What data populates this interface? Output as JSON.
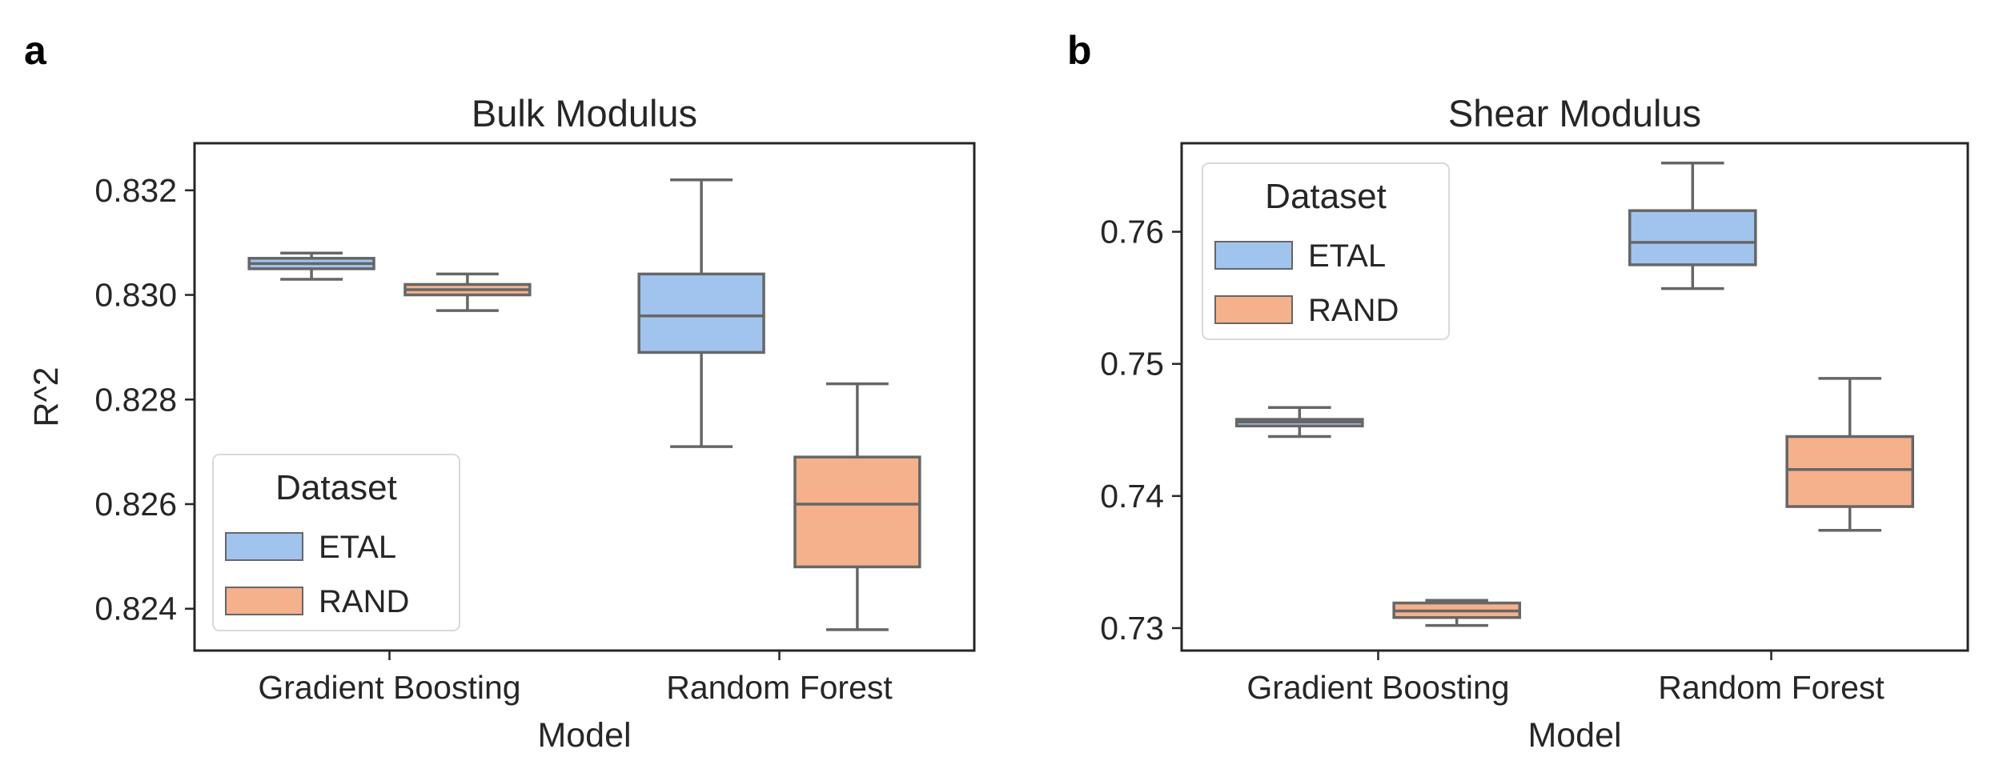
{
  "panels": [
    {
      "letter": "a"
    },
    {
      "letter": "b"
    }
  ],
  "colors": {
    "ETAL": "#a1c4ee",
    "RAND": "#f4b18c",
    "line": "#666666",
    "frame": "#262626"
  },
  "chart_data": [
    {
      "type": "box",
      "title": "Bulk Modulus",
      "xlabel": "Model",
      "ylabel": "R^2",
      "categories": [
        "Gradient Boosting",
        "Random Forest"
      ],
      "ylim": [
        0.8232,
        0.8329
      ],
      "yticks": [
        "0.824",
        "0.826",
        "0.828",
        "0.830",
        "0.832"
      ],
      "ytick_values": [
        0.824,
        0.826,
        0.828,
        0.83,
        0.832
      ],
      "legend": {
        "title": "Dataset",
        "position": "lower-left",
        "entries": [
          "ETAL",
          "RAND"
        ]
      },
      "series": [
        {
          "name": "ETAL",
          "boxes": [
            {
              "min": 0.8303,
              "q1": 0.8305,
              "median": 0.8306,
              "q3": 0.8307,
              "max": 0.8308
            },
            {
              "min": 0.8271,
              "q1": 0.8289,
              "median": 0.8296,
              "q3": 0.8304,
              "max": 0.8322
            }
          ]
        },
        {
          "name": "RAND",
          "boxes": [
            {
              "min": 0.8297,
              "q1": 0.83,
              "median": 0.8301,
              "q3": 0.8302,
              "max": 0.8304
            },
            {
              "min": 0.8236,
              "q1": 0.8248,
              "median": 0.826,
              "q3": 0.8269,
              "max": 0.8283
            }
          ]
        }
      ]
    },
    {
      "type": "box",
      "title": "Shear Modulus",
      "xlabel": "Model",
      "ylabel": "",
      "categories": [
        "Gradient Boosting",
        "Random Forest"
      ],
      "ylim": [
        0.7283,
        0.7667
      ],
      "yticks": [
        "0.73",
        "0.74",
        "0.75",
        "0.76"
      ],
      "ytick_values": [
        0.73,
        0.74,
        0.75,
        0.76
      ],
      "legend": {
        "title": "Dataset",
        "position": "upper-left",
        "entries": [
          "ETAL",
          "RAND"
        ]
      },
      "series": [
        {
          "name": "ETAL",
          "boxes": [
            {
              "min": 0.7445,
              "q1": 0.7453,
              "median": 0.7456,
              "q3": 0.7458,
              "max": 0.7467
            },
            {
              "min": 0.7557,
              "q1": 0.7575,
              "median": 0.7592,
              "q3": 0.7616,
              "max": 0.7652
            }
          ]
        },
        {
          "name": "RAND",
          "boxes": [
            {
              "min": 0.7302,
              "q1": 0.7308,
              "median": 0.7313,
              "q3": 0.7319,
              "max": 0.7321
            },
            {
              "min": 0.7374,
              "q1": 0.7392,
              "median": 0.742,
              "q3": 0.7445,
              "max": 0.7489
            }
          ]
        }
      ]
    }
  ]
}
